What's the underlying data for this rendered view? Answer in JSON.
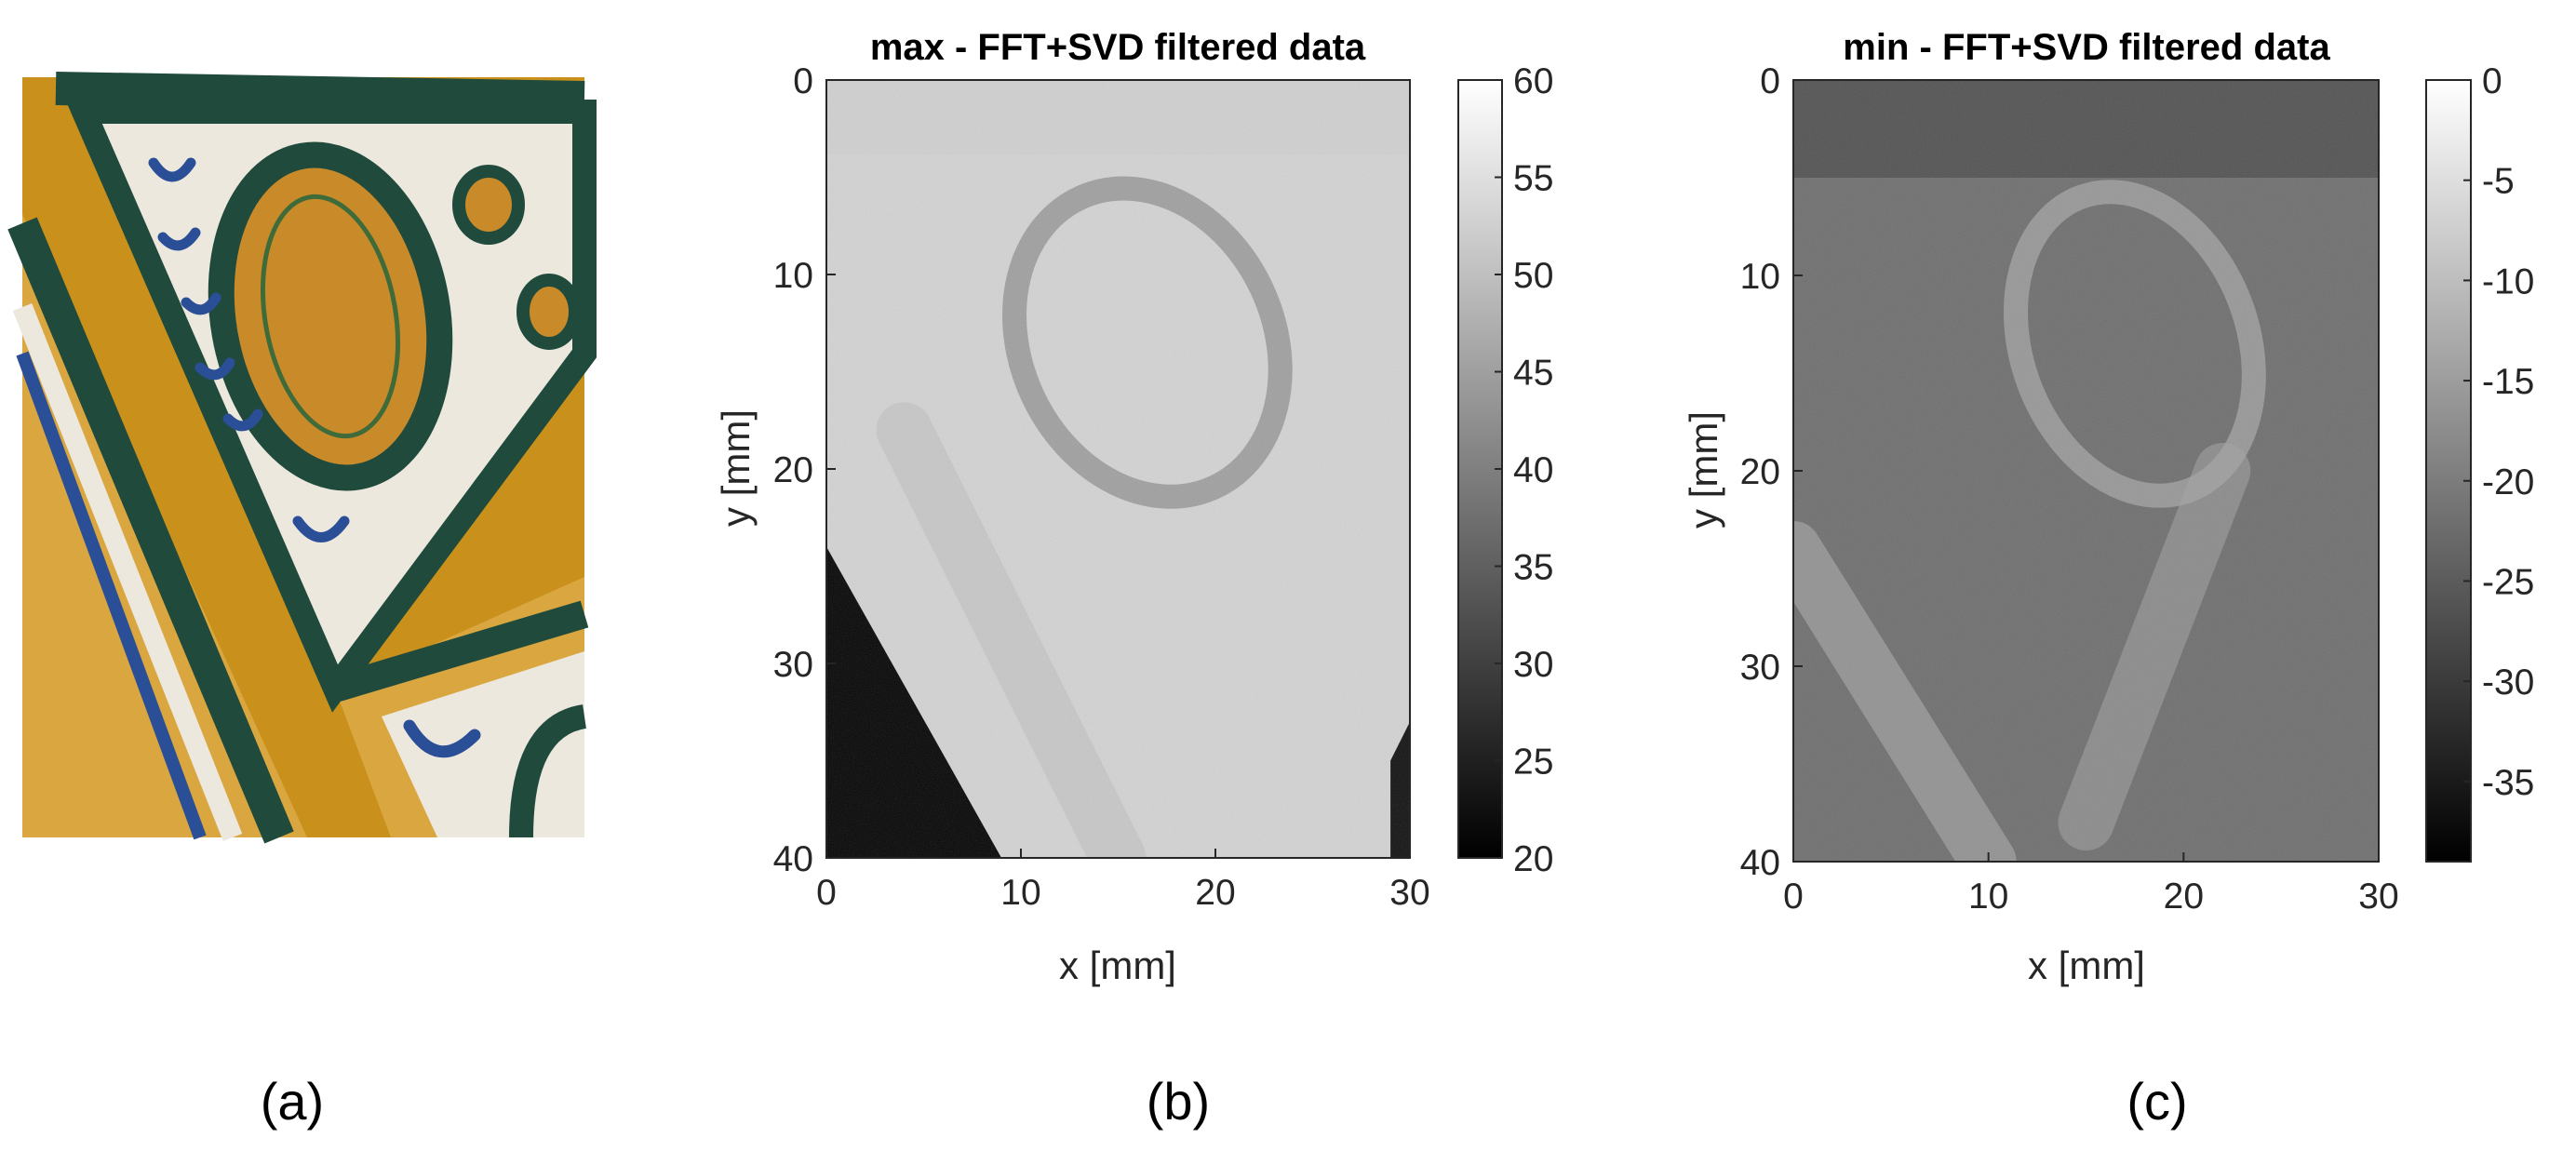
{
  "panel_labels": [
    "(a)",
    "(b)",
    "(c)"
  ],
  "colors": {
    "tile_ochre": "#c9911c",
    "tile_white": "#ece8dd",
    "tile_green": "#1f4a3c",
    "tile_blue": "#2b4f97",
    "colormap": "gray"
  },
  "photo": {
    "content": "photograph of glazed tile detail",
    "icon": "tile-photo"
  },
  "chart_data": [
    {
      "type": "heatmap",
      "title": "max - FFT+SVD filtered data",
      "xlabel": "x [mm]",
      "ylabel": "y [mm]",
      "xlim": [
        0,
        30
      ],
      "ylim": [
        0,
        40
      ],
      "y_reversed": true,
      "xticks": [
        "0",
        "10",
        "20",
        "30"
      ],
      "yticks": [
        "0",
        "10",
        "20",
        "30",
        "40"
      ],
      "colorbar": {
        "min": 20,
        "max": 60,
        "ticks": [
          "60",
          "55",
          "50",
          "45",
          "40",
          "35",
          "30",
          "25",
          "20"
        ],
        "colormap": "gray"
      },
      "features": [
        {
          "kind": "background",
          "value": 53
        },
        {
          "kind": "ellipse_outline",
          "cx": 16.5,
          "cy": 13.5,
          "rx": 6.5,
          "ry": 8.2,
          "rotate_deg": -25,
          "value": 43
        },
        {
          "kind": "dark_corner",
          "polygon": [
            [
              0,
              24
            ],
            [
              0,
              40
            ],
            [
              9,
              40
            ]
          ],
          "value": 21
        },
        {
          "kind": "dark_corner",
          "polygon": [
            [
              29,
              35
            ],
            [
              30,
              33
            ],
            [
              30,
              40
            ],
            [
              29,
              40
            ]
          ],
          "value": 23
        },
        {
          "kind": "band",
          "from": [
            4,
            18
          ],
          "to": [
            15,
            40
          ],
          "value": 50
        }
      ]
    },
    {
      "type": "heatmap",
      "title": "min - FFT+SVD filtered data",
      "xlabel": "x [mm]",
      "ylabel": "y [mm]",
      "xlim": [
        0,
        30
      ],
      "ylim": [
        0,
        40
      ],
      "y_reversed": true,
      "xticks": [
        "0",
        "10",
        "20",
        "30"
      ],
      "yticks": [
        "0",
        "10",
        "20",
        "30",
        "40"
      ],
      "colorbar": {
        "min": -39,
        "max": 0,
        "ticks": [
          "0",
          "-5",
          "-10",
          "-15",
          "-20",
          "-25",
          "-30",
          "-35"
        ],
        "colormap": "gray"
      },
      "features": [
        {
          "kind": "background",
          "value": -22
        },
        {
          "kind": "ellipse_outline",
          "cx": 17.5,
          "cy": 13.5,
          "rx": 5.8,
          "ry": 8.0,
          "rotate_deg": -20,
          "value": -14
        },
        {
          "kind": "band",
          "from": [
            0,
            24
          ],
          "to": [
            10,
            40
          ],
          "value": -12
        },
        {
          "kind": "band",
          "from": [
            22,
            20
          ],
          "to": [
            15,
            38
          ],
          "value": -14
        },
        {
          "kind": "dark_strip",
          "y_from": 0,
          "y_to": 5,
          "value": -29
        }
      ]
    }
  ]
}
